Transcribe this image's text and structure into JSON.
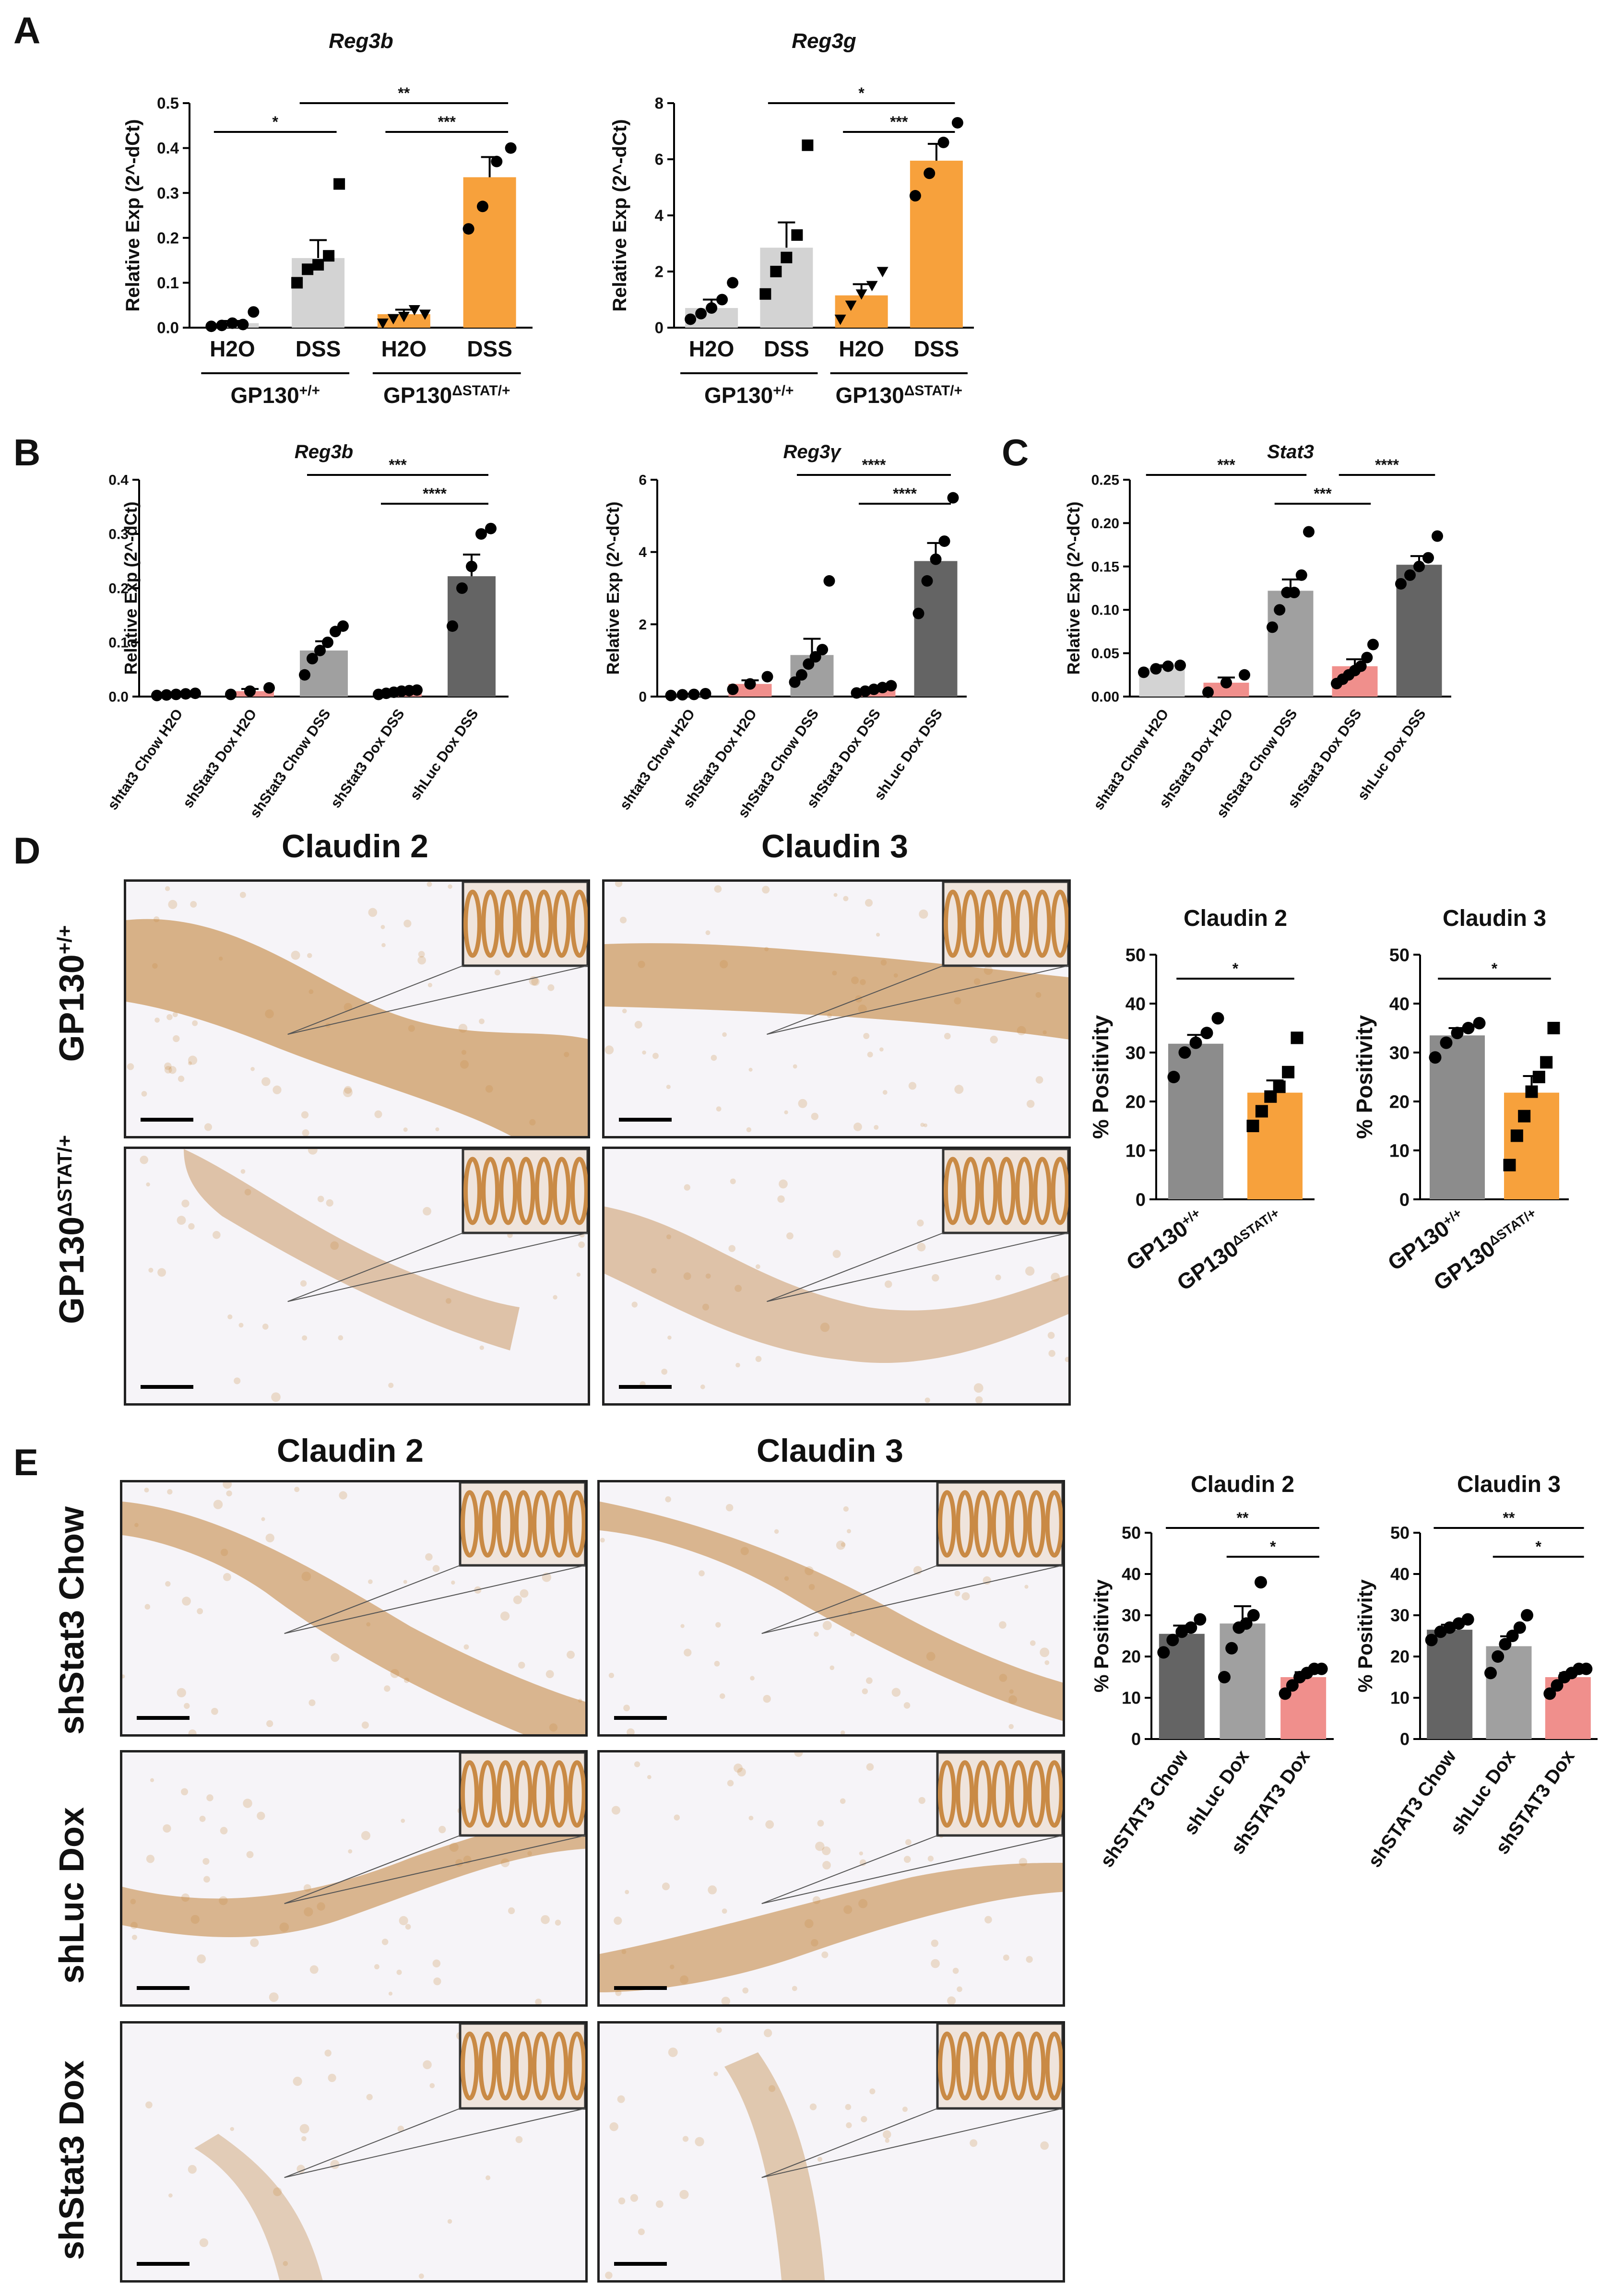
{
  "panels": {
    "A": "A",
    "B": "B",
    "C": "C",
    "D": "D",
    "E": "E"
  },
  "colors": {
    "gray": "#d3d3d3",
    "orange": "#f7a13c",
    "pink": "#f08f8c",
    "dark": "#646464",
    "mid": "#a0a0a0",
    "midgray": "#8c8c8c",
    "tissue_bg": "#f6f4f8",
    "stain": "#c98a45"
  },
  "chart_data": [
    {
      "id": "A1",
      "type": "bar",
      "title": "Reg3b",
      "title_italic": true,
      "ylabel": "Relative Exp (2^-dCt)",
      "ylim": [
        0,
        0.5
      ],
      "yticks": [
        0.0,
        0.1,
        0.2,
        0.3,
        0.4,
        0.5
      ],
      "ytick_labels": [
        "0.0",
        "0.1",
        "0.2",
        "0.3",
        "0.4",
        "0.5"
      ],
      "categories": [
        "H2O",
        "DSS",
        "H2O",
        "DSS"
      ],
      "values": [
        0.01,
        0.155,
        0.03,
        0.335
      ],
      "errors": [
        0.005,
        0.04,
        0.01,
        0.045
      ],
      "colors": [
        "#d3d3d3",
        "#d3d3d3",
        "#f7a13c",
        "#f7a13c"
      ],
      "points": [
        [
          0.003,
          0.005,
          0.01,
          0.007,
          0.035
        ],
        [
          0.1,
          0.13,
          0.14,
          0.16,
          0.32
        ],
        [
          0.01,
          0.02,
          0.025,
          0.04,
          0.03
        ],
        [
          0.22,
          0.27,
          0.37,
          0.4
        ]
      ],
      "markers": [
        "circle",
        "square",
        "triangle",
        "circle"
      ],
      "groups": [
        {
          "label": "GP130",
          "sup": "+/+",
          "start": 0,
          "end": 1
        },
        {
          "label": "GP130",
          "sup": "ΔSTAT/+",
          "start": 2,
          "end": 3
        }
      ],
      "sig": [
        {
          "from": 0,
          "to": 1,
          "label": "*",
          "level": 0
        },
        {
          "from": 2,
          "to": 3,
          "label": "***",
          "level": 0
        },
        {
          "from": 1,
          "to": 3,
          "label": "**",
          "level": 1
        }
      ]
    },
    {
      "id": "A2",
      "type": "bar",
      "title": "Reg3g",
      "title_italic": true,
      "ylabel": "Relative Exp (2^-dCt)",
      "ylim": [
        0,
        8
      ],
      "yticks": [
        0,
        2,
        4,
        6,
        8
      ],
      "ytick_labels": [
        "0",
        "2",
        "4",
        "6",
        "8"
      ],
      "categories": [
        "H2O",
        "DSS",
        "H2O",
        "DSS"
      ],
      "values": [
        0.7,
        2.85,
        1.15,
        5.95
      ],
      "errors": [
        0.3,
        0.9,
        0.4,
        0.6
      ],
      "colors": [
        "#d3d3d3",
        "#d3d3d3",
        "#f7a13c",
        "#f7a13c"
      ],
      "points": [
        [
          0.3,
          0.5,
          0.7,
          1.0,
          1.6
        ],
        [
          1.2,
          2.0,
          2.5,
          3.3,
          6.5
        ],
        [
          0.3,
          0.8,
          1.2,
          1.5,
          2.0
        ],
        [
          4.7,
          5.5,
          6.6,
          7.3
        ]
      ],
      "markers": [
        "circle",
        "square",
        "triangle",
        "circle"
      ],
      "groups": [
        {
          "label": "GP130",
          "sup": "+/+",
          "start": 0,
          "end": 1
        },
        {
          "label": "GP130",
          "sup": "ΔSTAT/+",
          "start": 2,
          "end": 3
        }
      ],
      "sig": [
        {
          "from": 2,
          "to": 3,
          "label": "***",
          "level": 0
        },
        {
          "from": 1,
          "to": 3,
          "label": "*",
          "level": 1
        }
      ]
    },
    {
      "id": "B1",
      "type": "bar",
      "title": "Reg3b",
      "title_italic": true,
      "ylabel": "Relative Exp (2^-dCt)",
      "ylim": [
        0,
        0.4
      ],
      "yticks": [
        0.0,
        0.1,
        0.2,
        0.3,
        0.4
      ],
      "ytick_labels": [
        "0.0",
        "0.1",
        "0.2",
        "0.3",
        "0.4"
      ],
      "categories": [
        "shtat3 Chow H2O",
        "shStat3 Dox H2O",
        "shStat3 Chow DSS",
        "shStat3 Dox DSS",
        "shLuc Dox DSS"
      ],
      "values": [
        0.004,
        0.01,
        0.085,
        0.008,
        0.222
      ],
      "errors": [
        0.002,
        0.004,
        0.017,
        0.003,
        0.04
      ],
      "colors": [
        "#d3d3d3",
        "#f08f8c",
        "#a0a0a0",
        "#f08f8c",
        "#646464"
      ],
      "points": [
        [
          0.002,
          0.003,
          0.004,
          0.005,
          0.006
        ],
        [
          0.004,
          0.01,
          0.016
        ],
        [
          0.04,
          0.07,
          0.085,
          0.1,
          0.12,
          0.13
        ],
        [
          0.004,
          0.006,
          0.008,
          0.01,
          0.011,
          0.012
        ],
        [
          0.13,
          0.2,
          0.24,
          0.3,
          0.31
        ]
      ],
      "markers": [
        "circle",
        "circle",
        "circle",
        "circle",
        "circle"
      ],
      "sig": [
        {
          "from": 3,
          "to": 4,
          "label": "****",
          "level": 0
        },
        {
          "from": 2,
          "to": 4,
          "label": "***",
          "level": 1
        }
      ]
    },
    {
      "id": "B2",
      "type": "bar",
      "title": "Reg3γ",
      "title_italic": true,
      "ylabel": "Relative Exp (2^-dCt)",
      "ylim": [
        0,
        6
      ],
      "yticks": [
        0,
        2,
        4,
        6
      ],
      "ytick_labels": [
        "0",
        "2",
        "4",
        "6"
      ],
      "categories": [
        "shtat3 Chow H2O",
        "shStat3 Dox H2O",
        "shStat3 Chow DSS",
        "shStat3 Dox DSS",
        "shLuc Dox DSS"
      ],
      "values": [
        0.06,
        0.35,
        1.15,
        0.2,
        3.75
      ],
      "errors": [
        0.02,
        0.1,
        0.45,
        0.05,
        0.5
      ],
      "colors": [
        "#d3d3d3",
        "#f08f8c",
        "#a0a0a0",
        "#f08f8c",
        "#646464"
      ],
      "points": [
        [
          0.03,
          0.05,
          0.06,
          0.08
        ],
        [
          0.2,
          0.35,
          0.55
        ],
        [
          0.4,
          0.6,
          0.9,
          1.1,
          1.3,
          3.2
        ],
        [
          0.1,
          0.15,
          0.2,
          0.25,
          0.3
        ],
        [
          2.3,
          3.2,
          3.8,
          4.3,
          5.5
        ]
      ],
      "markers": [
        "circle",
        "circle",
        "circle",
        "circle",
        "circle"
      ],
      "sig": [
        {
          "from": 3,
          "to": 4,
          "label": "****",
          "level": 0
        },
        {
          "from": 2,
          "to": 4,
          "label": "****",
          "level": 1
        }
      ]
    },
    {
      "id": "C1",
      "type": "bar",
      "title": "Stat3",
      "title_italic": true,
      "ylabel": "Relative Exp (2^-dCt)",
      "ylim": [
        0,
        0.25
      ],
      "yticks": [
        0.0,
        0.05,
        0.1,
        0.15,
        0.2,
        0.25
      ],
      "ytick_labels": [
        "0.00",
        "0.05",
        "0.10",
        "0.15",
        "0.20",
        "0.25"
      ],
      "categories": [
        "shtat3 Chow H2O",
        "shStat3 Dox H2O",
        "shStat3 Chow DSS",
        "shStat3 Dox DSS",
        "shLuc Dox DSS"
      ],
      "values": [
        0.033,
        0.016,
        0.122,
        0.035,
        0.152
      ],
      "errors": [
        0.003,
        0.006,
        0.013,
        0.008,
        0.01
      ],
      "colors": [
        "#d3d3d3",
        "#f08f8c",
        "#a0a0a0",
        "#f08f8c",
        "#646464"
      ],
      "points": [
        [
          0.028,
          0.032,
          0.035,
          0.036
        ],
        [
          0.005,
          0.016,
          0.025
        ],
        [
          0.08,
          0.1,
          0.12,
          0.12,
          0.14,
          0.19
        ],
        [
          0.015,
          0.02,
          0.025,
          0.03,
          0.035,
          0.045,
          0.06
        ],
        [
          0.13,
          0.14,
          0.15,
          0.16,
          0.185
        ]
      ],
      "markers": [
        "circle",
        "circle",
        "circle",
        "circle",
        "circle"
      ],
      "sig": [
        {
          "from": 0,
          "to": 2,
          "label": "***",
          "level": 1
        },
        {
          "from": 2,
          "to": 3,
          "label": "***",
          "level": 0
        },
        {
          "from": 3,
          "to": 4,
          "label": "****",
          "level": 1
        }
      ]
    },
    {
      "id": "D1",
      "type": "bar",
      "title": "Claudin 2",
      "title_italic": false,
      "ylabel": "% Positivity",
      "ylim": [
        0,
        50
      ],
      "yticks": [
        0,
        10,
        20,
        30,
        40,
        50
      ],
      "ytick_labels": [
        "0",
        "10",
        "20",
        "30",
        "40",
        "50"
      ],
      "categories": [
        "GP130|+/+",
        "GP130|ΔSTAT/+"
      ],
      "values": [
        31.8,
        21.8
      ],
      "errors": [
        1.8,
        2.5
      ],
      "colors": [
        "#8c8c8c",
        "#f7a13c"
      ],
      "points": [
        [
          25,
          30,
          32,
          34,
          37
        ],
        [
          15,
          18,
          21,
          23,
          26,
          33
        ]
      ],
      "markers": [
        "circle",
        "square"
      ],
      "sig": [
        {
          "from": 0,
          "to": 1,
          "label": "*",
          "level": 0
        }
      ]
    },
    {
      "id": "D2",
      "type": "bar",
      "title": "Claudin 3",
      "title_italic": false,
      "ylabel": "% Positivity",
      "ylim": [
        0,
        50
      ],
      "yticks": [
        0,
        10,
        20,
        30,
        40,
        50
      ],
      "ytick_labels": [
        "0",
        "10",
        "20",
        "30",
        "40",
        "50"
      ],
      "categories": [
        "GP130|+/+",
        "GP130|ΔSTAT/+"
      ],
      "values": [
        33.5,
        21.8
      ],
      "errors": [
        1.5,
        3.4
      ],
      "colors": [
        "#8c8c8c",
        "#f7a13c"
      ],
      "points": [
        [
          29,
          32,
          34,
          35,
          36
        ],
        [
          7,
          13,
          17,
          22,
          25,
          28,
          35
        ]
      ],
      "markers": [
        "circle",
        "square"
      ],
      "sig": [
        {
          "from": 0,
          "to": 1,
          "label": "*",
          "level": 0
        }
      ]
    },
    {
      "id": "E1",
      "type": "bar",
      "title": "Claudin 2",
      "title_italic": false,
      "ylabel": "% Positivity",
      "ylim": [
        0,
        50
      ],
      "yticks": [
        0,
        10,
        20,
        30,
        40,
        50
      ],
      "ytick_labels": [
        "0",
        "10",
        "20",
        "30",
        "40",
        "50"
      ],
      "categories": [
        "shSTAT3 Chow",
        "shLuc Dox",
        "shSTAT3 Dox"
      ],
      "values": [
        25.5,
        28.0,
        15.0
      ],
      "errors": [
        2.0,
        4.2,
        1.2
      ],
      "colors": [
        "#646464",
        "#a0a0a0",
        "#f08f8c"
      ],
      "points": [
        [
          21,
          24,
          26,
          27,
          29
        ],
        [
          15,
          22,
          27,
          28,
          30,
          38
        ],
        [
          11,
          13,
          15,
          16,
          17,
          17
        ]
      ],
      "markers": [
        "circle",
        "circle",
        "circle"
      ],
      "sig": [
        {
          "from": 1,
          "to": 2,
          "label": "*",
          "level": 0
        },
        {
          "from": 0,
          "to": 2,
          "label": "**",
          "level": 1
        }
      ]
    },
    {
      "id": "E2",
      "type": "bar",
      "title": "Claudin 3",
      "title_italic": false,
      "ylabel": "% Positivity",
      "ylim": [
        0,
        50
      ],
      "yticks": [
        0,
        10,
        20,
        30,
        40,
        50
      ],
      "ytick_labels": [
        "0",
        "10",
        "20",
        "30",
        "40",
        "50"
      ],
      "categories": [
        "shSTAT3 Chow",
        "shLuc Dox",
        "shSTAT3 Dox"
      ],
      "values": [
        26.5,
        22.5,
        15.0
      ],
      "errors": [
        1.2,
        2.4,
        1.0
      ],
      "colors": [
        "#646464",
        "#a0a0a0",
        "#f08f8c"
      ],
      "points": [
        [
          24,
          26,
          27,
          28,
          29
        ],
        [
          16,
          20,
          23,
          25,
          27,
          30
        ],
        [
          11,
          13,
          15,
          16,
          17,
          17
        ]
      ],
      "markers": [
        "circle",
        "circle",
        "circle"
      ],
      "sig": [
        {
          "from": 1,
          "to": 2,
          "label": "*",
          "level": 0
        },
        {
          "from": 0,
          "to": 2,
          "label": "**",
          "level": 1
        }
      ]
    }
  ],
  "micrographs": {
    "D": {
      "col_headers": [
        "Claudin 2",
        "Claudin 3"
      ],
      "row_labels": [
        {
          "base": "GP130",
          "sup": "+/+"
        },
        {
          "base": "GP130",
          "sup": "ΔSTAT/+"
        }
      ]
    },
    "E": {
      "col_headers": [
        "Claudin 2",
        "Claudin 3"
      ],
      "row_labels": [
        "shStat3 Chow",
        "shLuc Dox",
        "shStat3 Dox"
      ]
    }
  }
}
